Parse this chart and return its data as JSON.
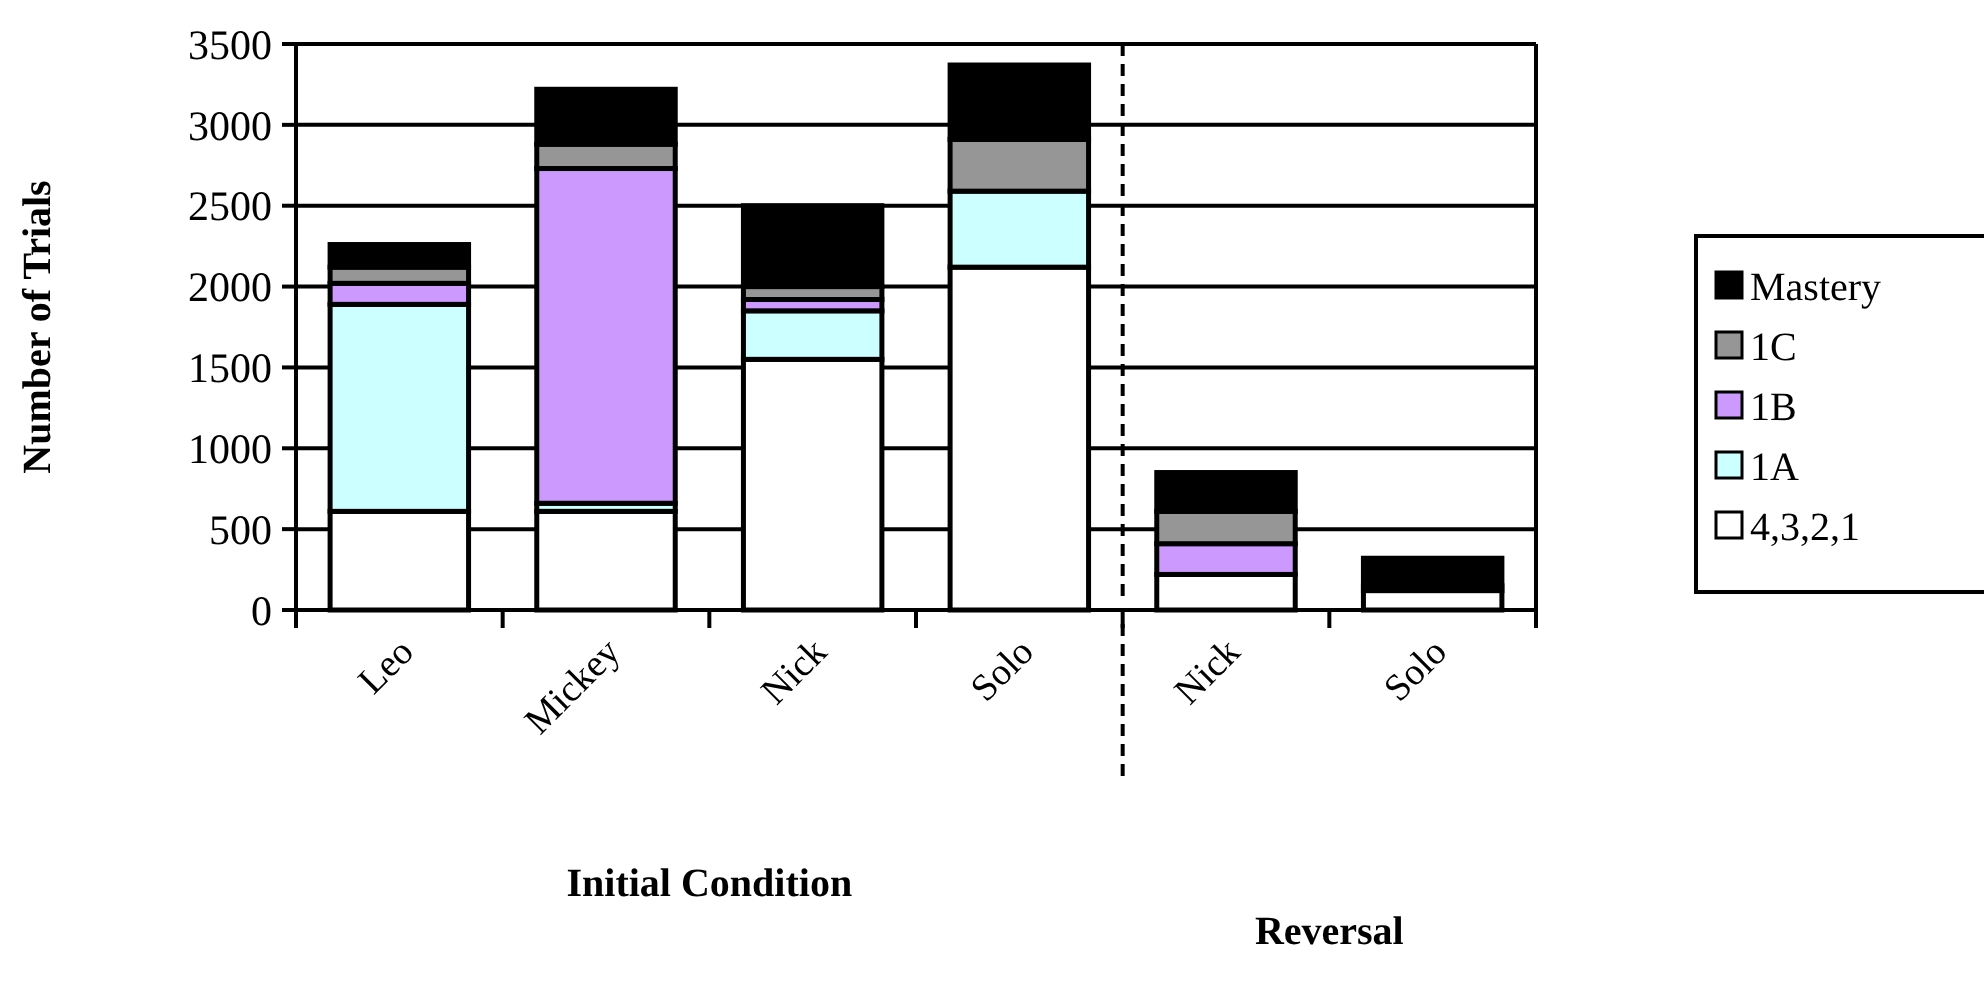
{
  "chart_data": {
    "type": "bar",
    "stacked": true,
    "xlabel": "Initial Condition",
    "ylabel": "Number of Trials",
    "annotations": [
      "Reversal"
    ],
    "categories": [
      "Leo",
      "Mickey",
      "Nick",
      "Solo",
      "Nick",
      "Solo"
    ],
    "series": [
      {
        "name": "4,3,2,1",
        "color": "#ffffff",
        "values": [
          610,
          610,
          1550,
          2120,
          220,
          120
        ]
      },
      {
        "name": "1A",
        "color": "#ccffff",
        "values": [
          1280,
          50,
          300,
          470,
          0,
          0
        ]
      },
      {
        "name": "1B",
        "color": "#cc99ff",
        "values": [
          130,
          2070,
          70,
          0,
          190,
          30
        ]
      },
      {
        "name": "1C",
        "color": "#969696",
        "values": [
          100,
          150,
          80,
          320,
          200,
          0
        ]
      },
      {
        "name": "Mastery",
        "color": "#000000",
        "values": [
          140,
          340,
          500,
          460,
          240,
          170
        ]
      }
    ],
    "ylim": [
      0,
      3500
    ],
    "yticks": [
      0,
      500,
      1000,
      1500,
      2000,
      2500,
      3000,
      3500
    ],
    "grid": "y",
    "legend": "right"
  }
}
